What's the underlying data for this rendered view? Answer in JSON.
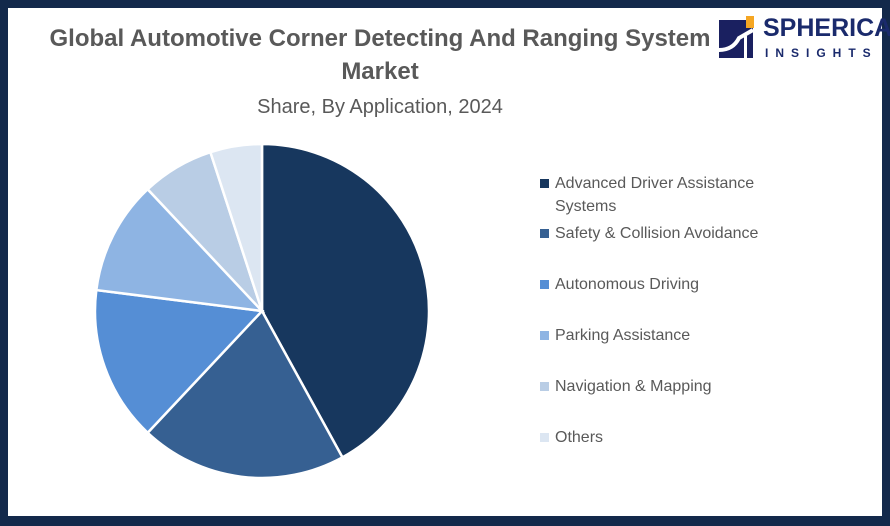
{
  "chart_data": {
    "type": "pie",
    "title": "Global Automotive Corner Detecting And Ranging System Market",
    "subtitle": "Share, By Application, 2024",
    "categories": [
      "Advanced Driver Assistance Systems",
      "Safety & Collision Avoidance",
      "Autonomous Driving",
      "Parking Assistance",
      "Navigation & Mapping",
      "Others"
    ],
    "values": [
      42,
      20,
      15,
      11,
      7,
      5
    ],
    "colors": [
      "#17375e",
      "#366092",
      "#558ed5",
      "#8eb4e3",
      "#b9cde5",
      "#dce6f2"
    ],
    "legend_position": "right"
  },
  "logo": {
    "line1": "SPHERICAL",
    "line2": "INSIGHTS"
  }
}
